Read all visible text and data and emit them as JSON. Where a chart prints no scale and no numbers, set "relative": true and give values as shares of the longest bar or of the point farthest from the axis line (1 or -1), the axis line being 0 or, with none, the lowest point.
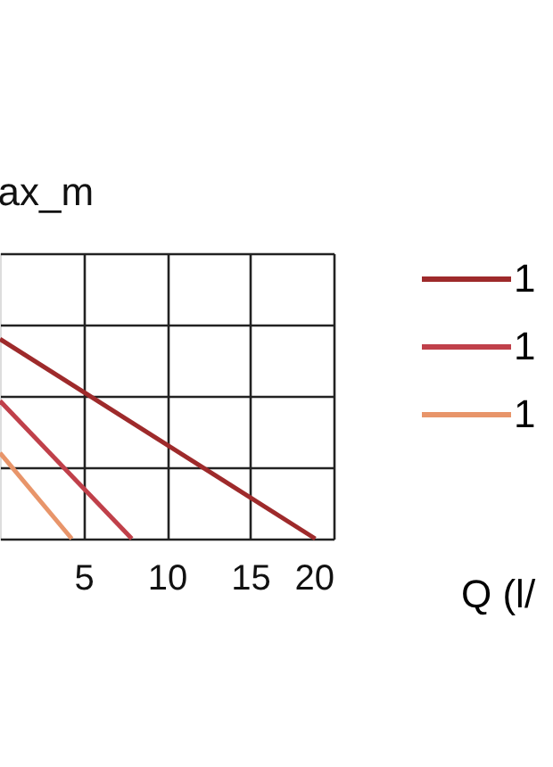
{
  "chart_data": {
    "type": "line",
    "title": "ax_m",
    "xlabel": "Q (l/",
    "relative": true,
    "xlim": [
      0,
      20
    ],
    "xticks": [
      5,
      10,
      15,
      20
    ],
    "grid": true,
    "legend": "right",
    "marker": "none",
    "line_style": "solid",
    "series": [
      {
        "name": "1",
        "color": "#9e2a2b",
        "x": [
          0,
          18.9
        ],
        "values": [
          1,
          0
        ]
      },
      {
        "name": "1",
        "color": "#c0404a",
        "x": [
          0,
          7.9
        ],
        "values": [
          0.69,
          0
        ]
      },
      {
        "name": "1",
        "color": "#e8956a",
        "x": [
          0,
          4.3
        ],
        "values": [
          0.43,
          0
        ]
      }
    ]
  }
}
